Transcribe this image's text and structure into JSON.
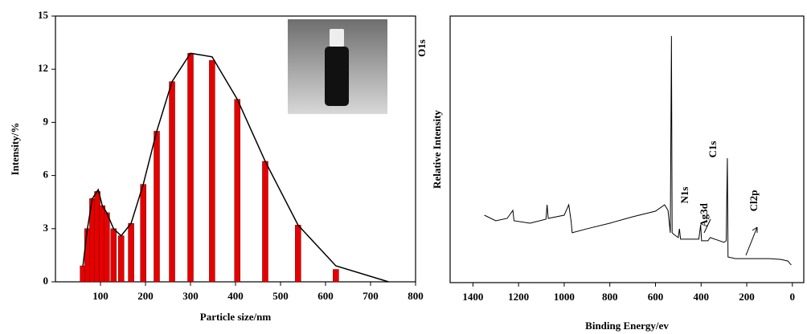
{
  "chart_data": [
    {
      "type": "bar-line",
      "x_label": "Particle size/nm",
      "y_label": "Intensity/%",
      "series": [
        {
          "type": "bar",
          "color": "#e60000",
          "x": [
            61,
            71,
            82,
            93,
            104,
            114,
            129,
            146,
            168,
            195,
            225,
            259,
            300,
            348,
            404,
            466,
            539,
            623
          ],
          "values": [
            0.9,
            3.0,
            4.7,
            5.1,
            4.3,
            3.9,
            3.0,
            2.6,
            3.3,
            5.5,
            8.5,
            11.3,
            12.9,
            12.5,
            10.3,
            6.8,
            3.2,
            0.7
          ]
        },
        {
          "type": "line",
          "color": "#000000",
          "x": [
            61,
            71,
            82,
            95,
            104,
            114,
            129,
            146,
            168,
            195,
            225,
            259,
            300,
            348,
            404,
            466,
            539,
            623,
            740
          ],
          "values": [
            0.9,
            3.0,
            4.7,
            5.2,
            4.3,
            3.9,
            3.0,
            2.6,
            3.3,
            5.5,
            8.5,
            11.3,
            12.9,
            12.7,
            10.3,
            6.8,
            3.2,
            0.9,
            0
          ]
        }
      ],
      "xlim": [
        0,
        800
      ],
      "xticks": [
        100,
        200,
        300,
        400,
        500,
        600,
        700,
        800
      ],
      "ylim": [
        0,
        15
      ],
      "yticks": [
        0,
        3,
        6,
        9,
        12,
        15
      ]
    },
    {
      "type": "line",
      "x_label": "Binding Energy/ev",
      "y_label": "Relative Intensity",
      "series": [
        {
          "color": "#000000",
          "x": [
            1350,
            1300,
            1250,
            1225,
            1220,
            1150,
            1080,
            1075,
            1070,
            1000,
            980,
            970,
            965,
            900,
            800,
            700,
            600,
            560,
            545,
            535,
            530,
            527,
            520,
            500,
            495,
            490,
            450,
            410,
            402,
            398,
            370,
            360,
            300,
            290,
            285,
            282,
            250,
            200,
            150,
            100,
            50,
            20,
            5
          ],
          "values": [
            25.3,
            23.2,
            24.1,
            27.1,
            23.2,
            22.3,
            23.8,
            29.2,
            24.1,
            25.3,
            29.2,
            23.2,
            18.7,
            20.2,
            22.3,
            24.7,
            26.8,
            29.2,
            27.1,
            18.7,
            92.5,
            18.7,
            18.1,
            16.9,
            20.2,
            16.3,
            16.3,
            16.3,
            21.7,
            15.7,
            15.7,
            16.9,
            15.1,
            15.7,
            46.7,
            9.6,
            9.0,
            9.0,
            9.0,
            9.0,
            8.7,
            8.1,
            6.6
          ]
        }
      ],
      "annotations": [
        "O1s",
        "N1s",
        "Ag3d",
        "C1s",
        "Cl2p"
      ],
      "xlim": [
        1500,
        -50
      ],
      "xticks": [
        1400,
        1200,
        1000,
        800,
        600,
        400,
        200,
        0
      ],
      "ylim": [
        0,
        100
      ]
    }
  ]
}
